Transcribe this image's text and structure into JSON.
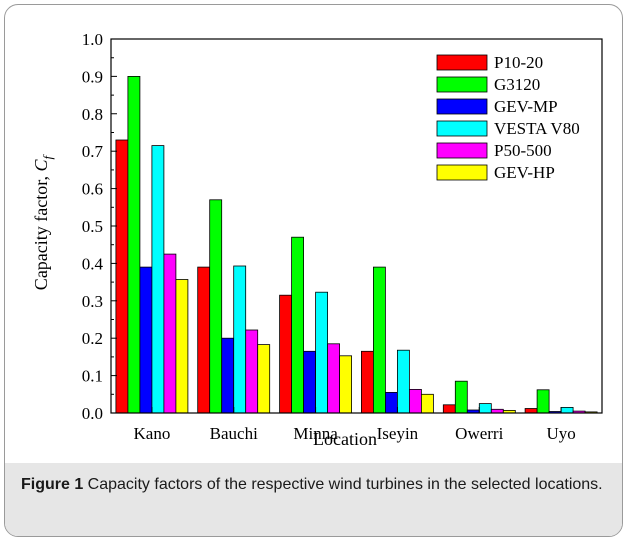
{
  "chart_data": {
    "type": "bar",
    "categories": [
      "Kano",
      "Bauchi",
      "Minna",
      "Iseyin",
      "Owerri",
      "Uyo"
    ],
    "series": [
      {
        "name": "P10-20",
        "color": "#ff0000",
        "values": [
          0.73,
          0.39,
          0.315,
          0.165,
          0.022,
          0.012
        ]
      },
      {
        "name": "G3120",
        "color": "#00ff00",
        "values": [
          0.9,
          0.57,
          0.47,
          0.39,
          0.085,
          0.062
        ]
      },
      {
        "name": "GEV-MP",
        "color": "#0000ff",
        "values": [
          0.39,
          0.2,
          0.165,
          0.055,
          0.008,
          0.004
        ]
      },
      {
        "name": "VESTA V80",
        "color": "#00ffff",
        "values": [
          0.715,
          0.393,
          0.323,
          0.168,
          0.025,
          0.015
        ]
      },
      {
        "name": "P50-500",
        "color": "#ff00ff",
        "values": [
          0.425,
          0.222,
          0.185,
          0.063,
          0.01,
          0.005
        ]
      },
      {
        "name": "GEV-HP",
        "color": "#ffff00",
        "values": [
          0.357,
          0.183,
          0.153,
          0.05,
          0.007,
          0.003
        ]
      }
    ],
    "xlabel": "Location",
    "ylabel": "Capacity factor, ",
    "ylabel_symbol": "C",
    "ylabel_subscript": "f",
    "ylim": [
      0,
      1.0
    ],
    "yticks": [
      "0.0",
      "0.1",
      "0.2",
      "0.3",
      "0.4",
      "0.5",
      "0.6",
      "0.7",
      "0.8",
      "0.9",
      "1.0"
    ],
    "grid": false,
    "legend_position": "top-right"
  },
  "caption": {
    "label": "Figure 1",
    "text": " Capacity factors of the respective wind turbines in the selected locations."
  }
}
